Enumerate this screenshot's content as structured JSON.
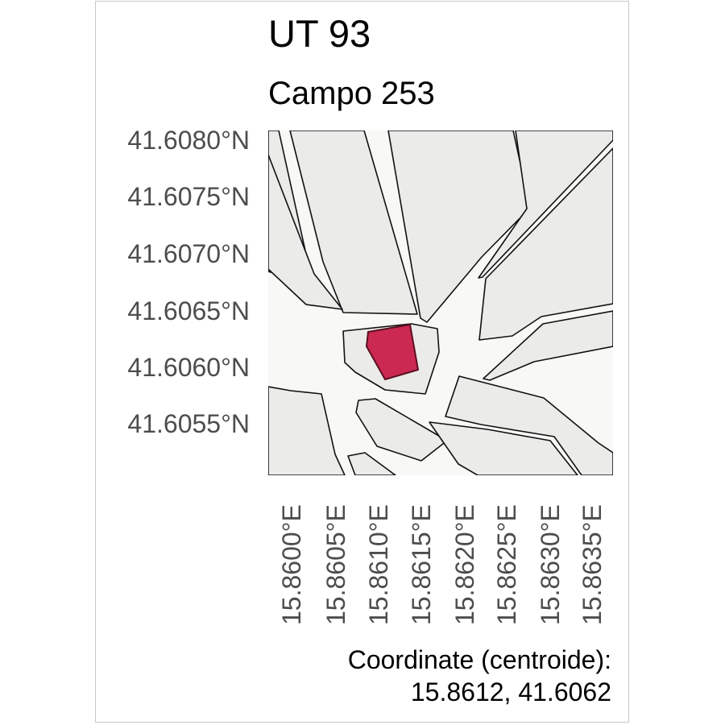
{
  "title": "UT 93",
  "subtitle": "Campo 253",
  "y_axis_labels": [
    "41.6080°N",
    "41.6075°N",
    "41.6070°N",
    "41.6065°N",
    "41.6060°N",
    "41.6055°N"
  ],
  "x_axis_labels": [
    "15.8600°E",
    "15.8605°E",
    "15.8610°E",
    "15.8615°E",
    "15.8620°E",
    "15.8625°E",
    "15.8630°E",
    "15.8635°E"
  ],
  "caption": {
    "line1": "Coordinate (centroide):",
    "line2": "15.8612, 41.6062"
  },
  "colors": {
    "map_background": "#f8f8f6",
    "parcel_fill": "#ebebea",
    "parcel_stroke": "#111111",
    "highlight_fill": "#cc2952",
    "highlight_stroke": "#5a1020"
  }
}
